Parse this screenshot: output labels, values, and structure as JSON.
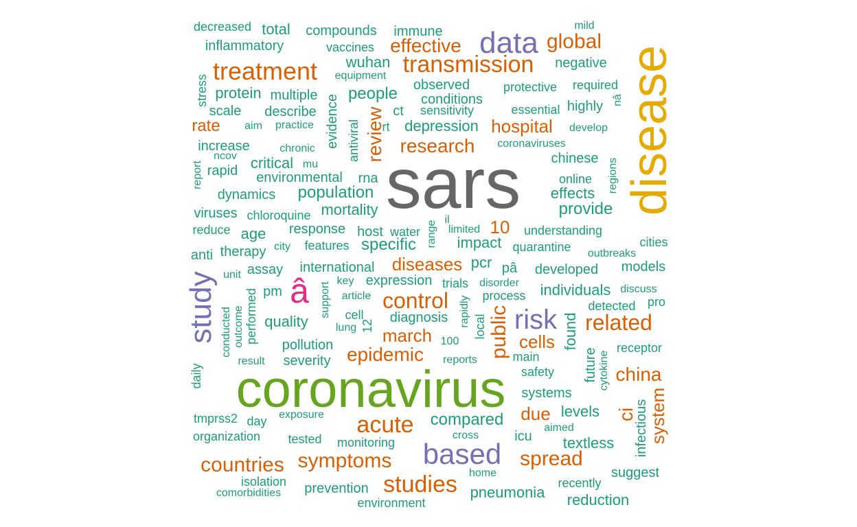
{
  "colors": {
    "teal": "#1b9e77",
    "orange": "#d95f02",
    "purple": "#7570b3",
    "magenta": "#e7298a",
    "green": "#66a61e",
    "gold": "#e6ab02",
    "gray": "#666666"
  },
  "words": [
    {
      "text": "sars",
      "color": "gray"
    },
    {
      "text": "disease",
      "color": "gold"
    },
    {
      "text": "coronavirus",
      "color": "green"
    },
    {
      "text": "â",
      "color": "magenta"
    },
    {
      "text": "study",
      "color": "purple"
    },
    {
      "text": "data",
      "color": "purple"
    },
    {
      "text": "based",
      "color": "purple"
    },
    {
      "text": "risk",
      "color": "purple"
    },
    {
      "text": "treatment",
      "color": "orange"
    },
    {
      "text": "transmission",
      "color": "orange"
    },
    {
      "text": "global",
      "color": "orange"
    },
    {
      "text": "effective",
      "color": "orange"
    },
    {
      "text": "review",
      "color": "orange"
    },
    {
      "text": "research",
      "color": "orange"
    },
    {
      "text": "hospital",
      "color": "orange"
    },
    {
      "text": "rate",
      "color": "orange"
    },
    {
      "text": "10",
      "color": "orange"
    },
    {
      "text": "diseases",
      "color": "orange"
    },
    {
      "text": "control",
      "color": "orange"
    },
    {
      "text": "related",
      "color": "orange"
    },
    {
      "text": "public",
      "color": "orange"
    },
    {
      "text": "march",
      "color": "orange"
    },
    {
      "text": "cells",
      "color": "orange"
    },
    {
      "text": "epidemic",
      "color": "orange"
    },
    {
      "text": "china",
      "color": "orange"
    },
    {
      "text": "acute",
      "color": "orange"
    },
    {
      "text": "due",
      "color": "orange"
    },
    {
      "text": "ci",
      "color": "orange"
    },
    {
      "text": "system",
      "color": "orange"
    },
    {
      "text": "countries",
      "color": "orange"
    },
    {
      "text": "symptoms",
      "color": "orange"
    },
    {
      "text": "spread",
      "color": "orange"
    },
    {
      "text": "studies",
      "color": "orange"
    },
    {
      "text": "decreased",
      "color": "teal"
    },
    {
      "text": "total",
      "color": "teal"
    },
    {
      "text": "compounds",
      "color": "teal"
    },
    {
      "text": "immune",
      "color": "teal"
    },
    {
      "text": "mild",
      "color": "teal"
    },
    {
      "text": "inflammatory",
      "color": "teal"
    },
    {
      "text": "vaccines",
      "color": "teal"
    },
    {
      "text": "wuhan",
      "color": "teal"
    },
    {
      "text": "negative",
      "color": "teal"
    },
    {
      "text": "equipment",
      "color": "teal"
    },
    {
      "text": "stress",
      "color": "teal"
    },
    {
      "text": "protein",
      "color": "teal"
    },
    {
      "text": "multiple",
      "color": "teal"
    },
    {
      "text": "people",
      "color": "teal"
    },
    {
      "text": "observed",
      "color": "teal"
    },
    {
      "text": "protective",
      "color": "teal"
    },
    {
      "text": "required",
      "color": "teal"
    },
    {
      "text": "evidence",
      "color": "teal"
    },
    {
      "text": "conditions",
      "color": "teal"
    },
    {
      "text": "highly",
      "color": "teal"
    },
    {
      "text": "nâ",
      "color": "teal"
    },
    {
      "text": "scale",
      "color": "teal"
    },
    {
      "text": "describe",
      "color": "teal"
    },
    {
      "text": "ct",
      "color": "teal"
    },
    {
      "text": "sensitivity",
      "color": "teal"
    },
    {
      "text": "essential",
      "color": "teal"
    },
    {
      "text": "aim",
      "color": "teal"
    },
    {
      "text": "practice",
      "color": "teal"
    },
    {
      "text": "antiviral",
      "color": "teal"
    },
    {
      "text": "rt",
      "color": "teal"
    },
    {
      "text": "depression",
      "color": "teal"
    },
    {
      "text": "develop",
      "color": "teal"
    },
    {
      "text": "increase",
      "color": "teal"
    },
    {
      "text": "chronic",
      "color": "teal"
    },
    {
      "text": "coronaviruses",
      "color": "teal"
    },
    {
      "text": "report",
      "color": "teal"
    },
    {
      "text": "ncov",
      "color": "teal"
    },
    {
      "text": "critical",
      "color": "teal"
    },
    {
      "text": "mu",
      "color": "teal"
    },
    {
      "text": "chinese",
      "color": "teal"
    },
    {
      "text": "regions",
      "color": "teal"
    },
    {
      "text": "rapid",
      "color": "teal"
    },
    {
      "text": "environmental",
      "color": "teal"
    },
    {
      "text": "rna",
      "color": "teal"
    },
    {
      "text": "online",
      "color": "teal"
    },
    {
      "text": "dynamics",
      "color": "teal"
    },
    {
      "text": "population",
      "color": "teal"
    },
    {
      "text": "effects",
      "color": "teal"
    },
    {
      "text": "provide",
      "color": "teal"
    },
    {
      "text": "viruses",
      "color": "teal"
    },
    {
      "text": "chloroquine",
      "color": "teal"
    },
    {
      "text": "mortality",
      "color": "teal"
    },
    {
      "text": "reduce",
      "color": "teal"
    },
    {
      "text": "age",
      "color": "teal"
    },
    {
      "text": "response",
      "color": "teal"
    },
    {
      "text": "host",
      "color": "teal"
    },
    {
      "text": "water",
      "color": "teal"
    },
    {
      "text": "range",
      "color": "teal"
    },
    {
      "text": "il",
      "color": "teal"
    },
    {
      "text": "limited",
      "color": "teal"
    },
    {
      "text": "understanding",
      "color": "teal"
    },
    {
      "text": "cities",
      "color": "teal"
    },
    {
      "text": "anti",
      "color": "teal"
    },
    {
      "text": "therapy",
      "color": "teal"
    },
    {
      "text": "city",
      "color": "teal"
    },
    {
      "text": "features",
      "color": "teal"
    },
    {
      "text": "specific",
      "color": "teal"
    },
    {
      "text": "impact",
      "color": "teal"
    },
    {
      "text": "quarantine",
      "color": "teal"
    },
    {
      "text": "outbreaks",
      "color": "teal"
    },
    {
      "text": "assay",
      "color": "teal"
    },
    {
      "text": "international",
      "color": "teal"
    },
    {
      "text": "pcr",
      "color": "teal"
    },
    {
      "text": "pâ",
      "color": "teal"
    },
    {
      "text": "developed",
      "color": "teal"
    },
    {
      "text": "models",
      "color": "teal"
    },
    {
      "text": "unit",
      "color": "teal"
    },
    {
      "text": "key",
      "color": "teal"
    },
    {
      "text": "expression",
      "color": "teal"
    },
    {
      "text": "trials",
      "color": "teal"
    },
    {
      "text": "disorder",
      "color": "teal"
    },
    {
      "text": "individuals",
      "color": "teal"
    },
    {
      "text": "discuss",
      "color": "teal"
    },
    {
      "text": "pm",
      "color": "teal"
    },
    {
      "text": "support",
      "color": "teal"
    },
    {
      "text": "article",
      "color": "teal"
    },
    {
      "text": "rapidly",
      "color": "teal"
    },
    {
      "text": "process",
      "color": "teal"
    },
    {
      "text": "detected",
      "color": "teal"
    },
    {
      "text": "pro",
      "color": "teal"
    },
    {
      "text": "conducted",
      "color": "teal"
    },
    {
      "text": "outcome",
      "color": "teal"
    },
    {
      "text": "performed",
      "color": "teal"
    },
    {
      "text": "quality",
      "color": "teal"
    },
    {
      "text": "cell",
      "color": "teal"
    },
    {
      "text": "diagnosis",
      "color": "teal"
    },
    {
      "text": "local",
      "color": "teal"
    },
    {
      "text": "found",
      "color": "teal"
    },
    {
      "text": "lung",
      "color": "teal"
    },
    {
      "text": "12",
      "color": "teal"
    },
    {
      "text": "pollution",
      "color": "teal"
    },
    {
      "text": "100",
      "color": "teal"
    },
    {
      "text": "future",
      "color": "teal"
    },
    {
      "text": "receptor",
      "color": "teal"
    },
    {
      "text": "result",
      "color": "teal"
    },
    {
      "text": "severity",
      "color": "teal"
    },
    {
      "text": "reports",
      "color": "teal"
    },
    {
      "text": "main",
      "color": "teal"
    },
    {
      "text": "cytokine",
      "color": "teal"
    },
    {
      "text": "daily",
      "color": "teal"
    },
    {
      "text": "safety",
      "color": "teal"
    },
    {
      "text": "systems",
      "color": "teal"
    },
    {
      "text": "infectious",
      "color": "teal"
    },
    {
      "text": "tmprss2",
      "color": "teal"
    },
    {
      "text": "day",
      "color": "teal"
    },
    {
      "text": "exposure",
      "color": "teal"
    },
    {
      "text": "compared",
      "color": "teal"
    },
    {
      "text": "levels",
      "color": "teal"
    },
    {
      "text": "organization",
      "color": "teal"
    },
    {
      "text": "tested",
      "color": "teal"
    },
    {
      "text": "cross",
      "color": "teal"
    },
    {
      "text": "icu",
      "color": "teal"
    },
    {
      "text": "aimed",
      "color": "teal"
    },
    {
      "text": "monitoring",
      "color": "teal"
    },
    {
      "text": "textless",
      "color": "teal"
    },
    {
      "text": "home",
      "color": "teal"
    },
    {
      "text": "suggest",
      "color": "teal"
    },
    {
      "text": "isolation",
      "color": "teal"
    },
    {
      "text": "recently",
      "color": "teal"
    },
    {
      "text": "comorbidities",
      "color": "teal"
    },
    {
      "text": "prevention",
      "color": "teal"
    },
    {
      "text": "pneumonia",
      "color": "teal"
    },
    {
      "text": "reduction",
      "color": "teal"
    },
    {
      "text": "environment",
      "color": "teal"
    }
  ]
}
